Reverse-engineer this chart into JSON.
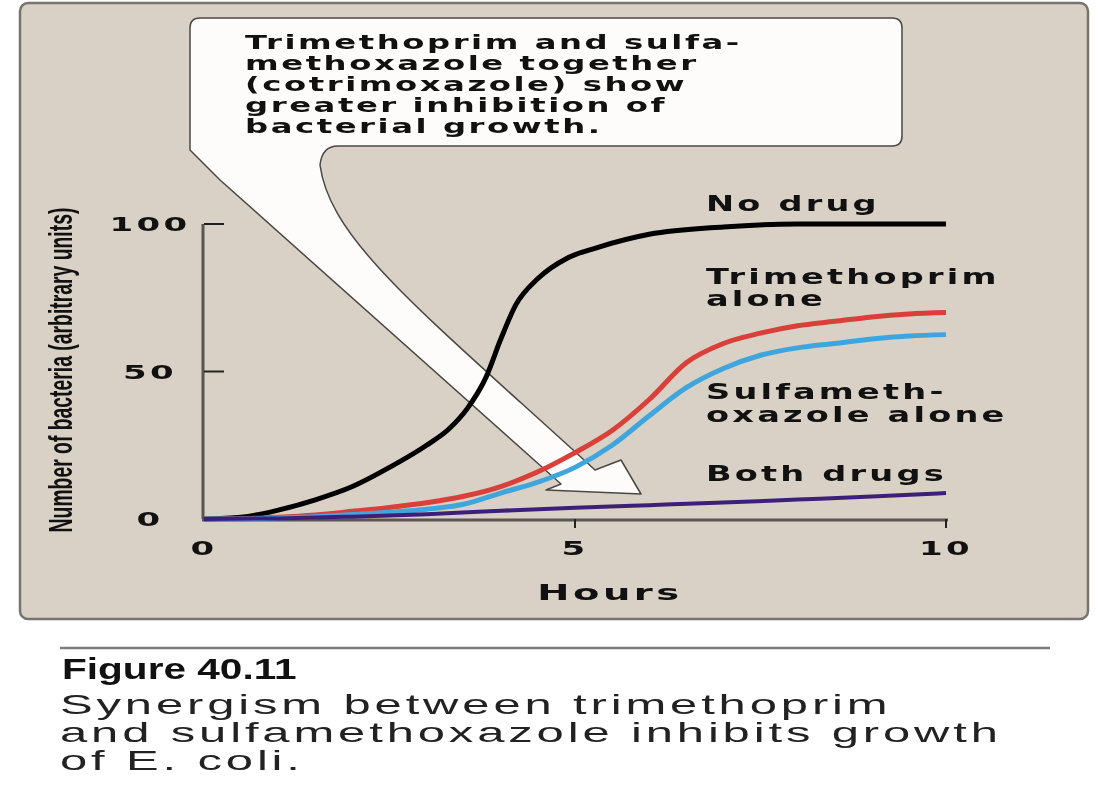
{
  "chart_data": {
    "type": "line",
    "title": "Figure 40.11",
    "subtitle": "Synergism between trimethoprim\nand sulfamethoxazole inhibits growth\nof E. coli.",
    "xlabel": "Hours",
    "ylabel": "Number of bacteria (arbitrary units)",
    "annotations": [
      "Trimethoprim and sulfa-\nmethoxazole together\n(cotrimoxazole) show\ngreater inhibition of\nbacterial growth."
    ],
    "xlim": [
      0,
      10
    ],
    "ylim": [
      0,
      100
    ],
    "xticks": [
      0,
      5,
      10
    ],
    "yticks": [
      0,
      50,
      100
    ],
    "series": [
      {
        "name": "No drug",
        "color": "#000000",
        "x": [
          0,
          0.5,
          1,
          1.5,
          2,
          2.5,
          3,
          3.3,
          3.55,
          3.8,
          4,
          4.2,
          4.5,
          4.9,
          5.3,
          6,
          7,
          8,
          9,
          10
        ],
        "values": [
          0,
          0.6,
          3,
          6.5,
          11,
          17.5,
          25,
          30.5,
          37.5,
          48,
          61,
          72.5,
          81.5,
          88.5,
          92,
          96.5,
          99,
          100,
          100,
          100
        ]
      },
      {
        "name": "Trimethoprim\nalone",
        "color": "#d9403a",
        "x": [
          0,
          0.5,
          1,
          1.5,
          2,
          2.5,
          3,
          3.5,
          4,
          4.5,
          5,
          5.5,
          6,
          6.5,
          7,
          7.5,
          8,
          8.5,
          9,
          9.5,
          10
        ],
        "values": [
          0,
          0.1,
          0.6,
          1.4,
          2.6,
          3.9,
          5.5,
          7.7,
          11,
          16,
          22.5,
          30,
          40.5,
          53,
          59.5,
          63,
          65.5,
          67,
          68.5,
          69.5,
          70
        ]
      },
      {
        "name": "Sulfameth-\noxazole alone",
        "color": "#3fa6dd",
        "x": [
          0,
          0.5,
          1,
          1.5,
          2,
          2.5,
          3,
          3.5,
          4,
          4.5,
          5,
          5.5,
          6,
          6.5,
          7,
          7.5,
          8,
          8.5,
          9,
          9.5,
          10
        ],
        "values": [
          0,
          0,
          0.3,
          0.8,
          1.5,
          2.3,
          3.3,
          5,
          8.8,
          12.5,
          17.5,
          25,
          35,
          44.5,
          51,
          55.5,
          58,
          59.5,
          61,
          62,
          62.5
        ]
      },
      {
        "name": "Both drugs",
        "color": "#3d1f7a",
        "x": [
          0,
          1,
          2,
          3,
          4,
          5,
          6,
          7,
          8,
          9,
          10
        ],
        "values": [
          0,
          0.2,
          0.8,
          1.6,
          2.8,
          3.8,
          4.7,
          5.6,
          6.6,
          7.6,
          8.8
        ]
      }
    ]
  }
}
